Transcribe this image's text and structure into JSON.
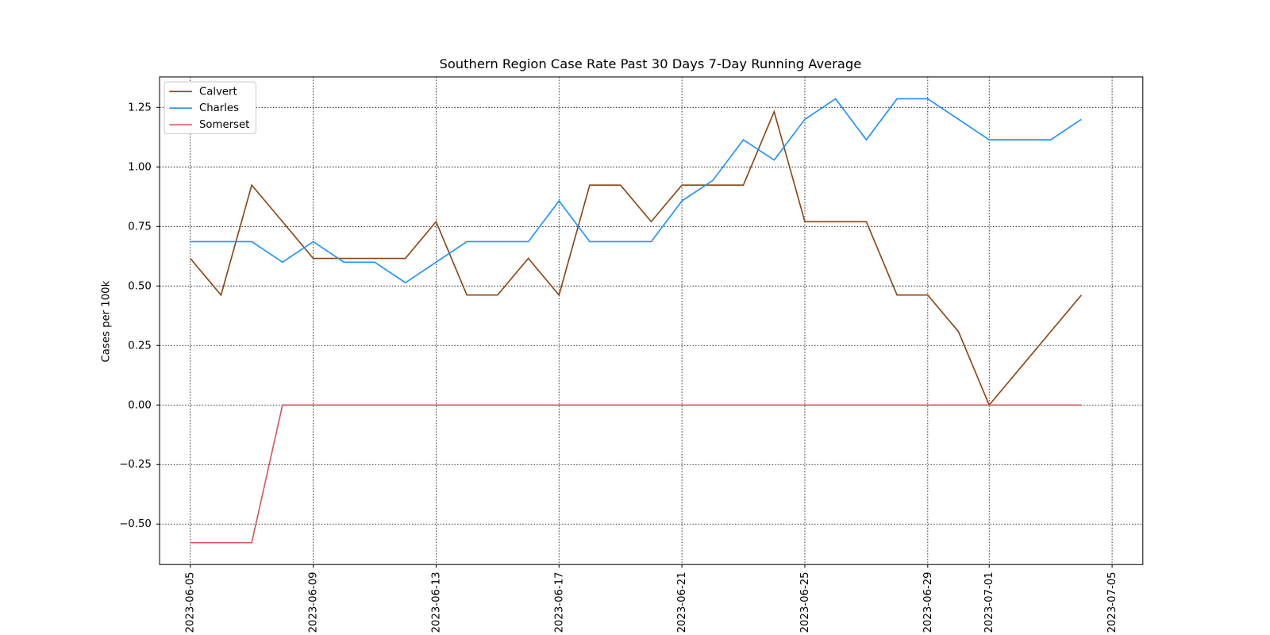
{
  "chart_data": {
    "type": "line",
    "title": "Southern Region Case Rate  Past 30 Days 7-Day Running Average",
    "y_label": "Cases per 100k",
    "x": [
      "2023-06-05",
      "2023-06-06",
      "2023-06-07",
      "2023-06-08",
      "2023-06-09",
      "2023-06-10",
      "2023-06-11",
      "2023-06-12",
      "2023-06-13",
      "2023-06-14",
      "2023-06-15",
      "2023-06-16",
      "2023-06-17",
      "2023-06-18",
      "2023-06-19",
      "2023-06-20",
      "2023-06-21",
      "2023-06-22",
      "2023-06-23",
      "2023-06-24",
      "2023-06-25",
      "2023-06-26",
      "2023-06-27",
      "2023-06-28",
      "2023-06-29",
      "2023-06-30",
      "2023-07-01",
      "2023-07-02",
      "2023-07-03",
      "2023-07-04"
    ],
    "series": [
      {
        "name": "Calvert",
        "color": "#8B4513",
        "values": [
          0.616,
          0.462,
          0.924,
          0.77,
          0.616,
          0.616,
          0.616,
          0.616,
          0.77,
          0.462,
          0.462,
          0.616,
          0.462,
          0.924,
          0.924,
          0.77,
          0.924,
          0.924,
          0.924,
          1.232,
          0.77,
          0.77,
          0.77,
          0.462,
          0.462,
          0.308,
          0,
          0.154,
          0.308,
          0.462
        ]
      },
      {
        "name": "Charles",
        "color": "#1E90FF",
        "values": [
          0.686,
          0.686,
          0.686,
          0.6,
          0.686,
          0.6,
          0.6,
          0.514,
          0.6,
          0.686,
          0.686,
          0.686,
          0.857,
          0.686,
          0.686,
          0.686,
          0.857,
          0.943,
          1.114,
          1.029,
          1.2,
          1.286,
          1.114,
          1.286,
          1.286,
          1.2,
          1.114,
          1.114,
          1.114,
          1.2
        ]
      },
      {
        "name": "Somerset",
        "color": "#CD5C5C",
        "values": [
          -0.578,
          -0.578,
          -0.578,
          0,
          0,
          0,
          0,
          0,
          0,
          0,
          0,
          0,
          0,
          0,
          0,
          0,
          0,
          0,
          0,
          0,
          0,
          0,
          0,
          0,
          0,
          0,
          0,
          0,
          0,
          0
        ]
      }
    ],
    "xlim": [
      "2023-06-04",
      "2023-07-06"
    ],
    "xticks": [
      "2023-06-05",
      "2023-06-09",
      "2023-06-13",
      "2023-06-17",
      "2023-06-21",
      "2023-06-25",
      "2023-06-29",
      "2023-07-01",
      "2023-07-05"
    ],
    "ylim": [
      -0.67,
      1.378
    ],
    "yticks": [
      {
        "value": -0.5,
        "label": "−0.50"
      },
      {
        "value": -0.25,
        "label": "−0.25"
      },
      {
        "value": 0,
        "label": "0.00"
      },
      {
        "value": 0.25,
        "label": "0.25"
      },
      {
        "value": 0.5,
        "label": "0.50"
      },
      {
        "value": 0.75,
        "label": "0.75"
      },
      {
        "value": 1,
        "label": "1.00"
      },
      1.25
    ],
    "grid": true,
    "legend": "upper left"
  }
}
